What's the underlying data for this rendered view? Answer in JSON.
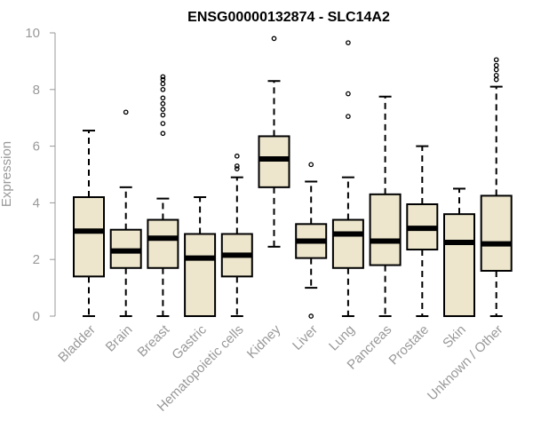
{
  "chart_data": {
    "type": "box",
    "title": "ENSG00000132874 - SLC14A2",
    "xlabel": "",
    "ylabel": "Expression",
    "ylim": [
      0,
      10
    ],
    "yticks": [
      0,
      2,
      4,
      6,
      8,
      10
    ],
    "box_fill": "#ede6cc",
    "categories": [
      "Bladder",
      "Brain",
      "Breast",
      "Gastric",
      "Hematopoietic cells",
      "Kidney",
      "Liver",
      "Lung",
      "Pancreas",
      "Prostate",
      "Skin",
      "Unknown / Other"
    ],
    "boxes": [
      {
        "whisker_low": 0.0,
        "q1": 1.4,
        "median": 3.0,
        "q3": 4.2,
        "whisker_high": 6.55,
        "outliers": []
      },
      {
        "whisker_low": 0.0,
        "q1": 1.7,
        "median": 2.3,
        "q3": 3.05,
        "whisker_high": 4.55,
        "outliers": [
          7.2
        ]
      },
      {
        "whisker_low": 0.0,
        "q1": 1.7,
        "median": 2.75,
        "q3": 3.4,
        "whisker_high": 4.15,
        "outliers": [
          6.45,
          6.8,
          7.1,
          7.3,
          7.5,
          7.7,
          8.0,
          8.2,
          8.35,
          8.45
        ]
      },
      {
        "whisker_low": 0.0,
        "q1": 0.0,
        "median": 2.05,
        "q3": 2.9,
        "whisker_high": 4.2,
        "outliers": []
      },
      {
        "whisker_low": 0.0,
        "q1": 1.4,
        "median": 2.15,
        "q3": 2.9,
        "whisker_high": 4.9,
        "outliers": [
          5.2,
          5.3,
          5.65
        ]
      },
      {
        "whisker_low": 2.45,
        "q1": 4.55,
        "median": 5.55,
        "q3": 6.35,
        "whisker_high": 8.3,
        "outliers": [
          9.8
        ]
      },
      {
        "whisker_low": 1.0,
        "q1": 2.05,
        "median": 2.65,
        "q3": 3.25,
        "whisker_high": 4.75,
        "outliers": [
          0.0,
          5.35
        ]
      },
      {
        "whisker_low": 0.0,
        "q1": 1.7,
        "median": 2.9,
        "q3": 3.4,
        "whisker_high": 4.9,
        "outliers": [
          7.05,
          7.85,
          9.65
        ]
      },
      {
        "whisker_low": 0.0,
        "q1": 1.8,
        "median": 2.65,
        "q3": 4.3,
        "whisker_high": 7.75,
        "outliers": []
      },
      {
        "whisker_low": 0.0,
        "q1": 2.35,
        "median": 3.1,
        "q3": 3.95,
        "whisker_high": 6.0,
        "outliers": []
      },
      {
        "whisker_low": 0.0,
        "q1": 0.0,
        "median": 2.6,
        "q3": 3.6,
        "whisker_high": 4.5,
        "outliers": []
      },
      {
        "whisker_low": 0.0,
        "q1": 1.6,
        "median": 2.55,
        "q3": 4.25,
        "whisker_high": 8.1,
        "outliers": [
          8.35,
          8.5,
          8.7,
          8.85,
          9.05
        ]
      }
    ]
  }
}
